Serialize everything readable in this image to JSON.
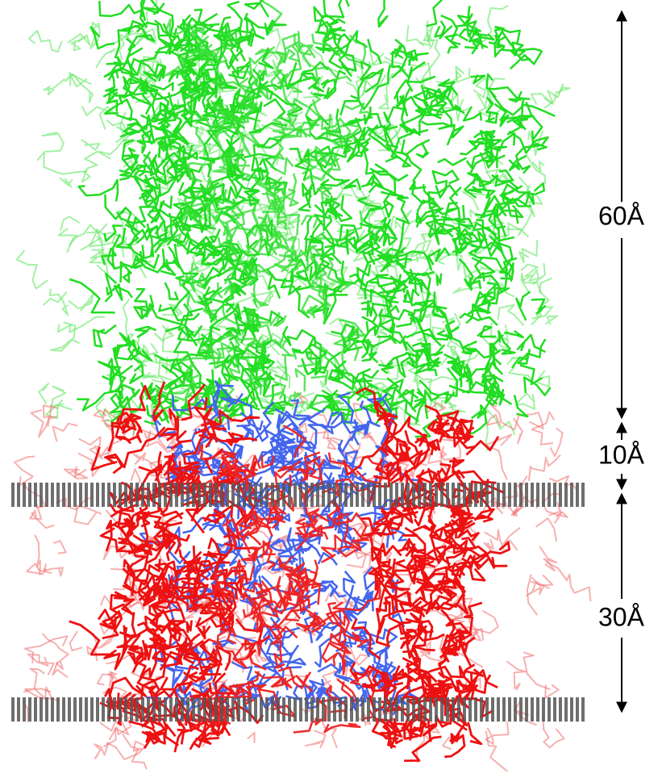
{
  "dimension_labels": [
    "60Å",
    "10Å",
    "30Å"
  ]
}
